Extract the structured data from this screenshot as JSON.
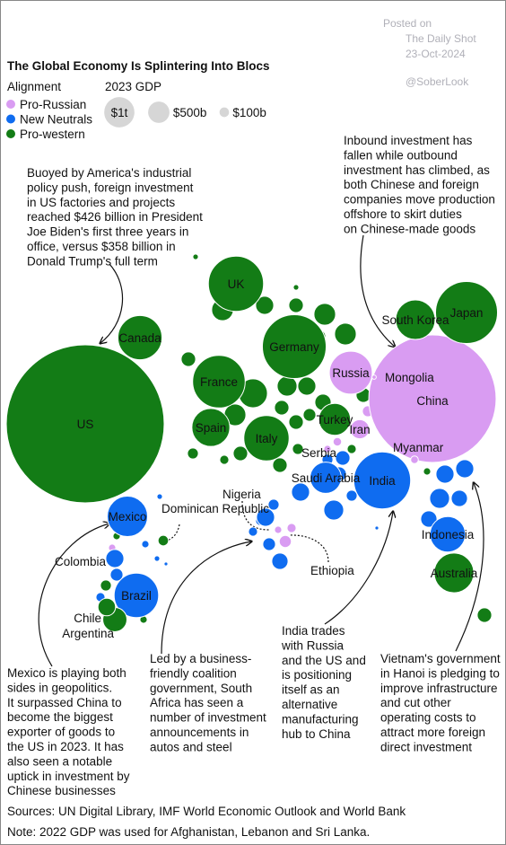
{
  "watermark": {
    "posted": "Posted on",
    "source": "The Daily Shot",
    "date": "23-Oct-2024",
    "handle": "@SoberLook"
  },
  "chart_data": {
    "type": "bubble",
    "title": "The Global Economy Is Splintering Into Blocs",
    "legend_title": "Alignment",
    "size_title": "2023 GDP",
    "groups": [
      {
        "name": "Pro-Russian",
        "color": "#d99cf2"
      },
      {
        "name": "New Neutrals",
        "color": "#0f6cf0"
      },
      {
        "name": "Pro-western",
        "color": "#137c16"
      }
    ],
    "size_legend": [
      {
        "value": 1,
        "label": "$1t"
      },
      {
        "value": 0.5,
        "label": "$500b"
      },
      {
        "value": 0.1,
        "label": "$100b"
      }
    ],
    "countries": [
      "US",
      "China",
      "Germany",
      "Japan",
      "India",
      "UK",
      "France",
      "Italy",
      "Brazil",
      "Canada",
      "Russia",
      "Mexico",
      "Australia",
      "South Korea",
      "Spain",
      "Indonesia",
      "Turkey",
      "Saudi Arabia",
      "Iran",
      "Argentina",
      "Nigeria",
      "Colombia",
      "Chile",
      "Ethiopia",
      "Dominican Republic",
      "Serbia",
      "Myanmar",
      "Mongolia"
    ],
    "gdp": [
      27.36,
      17.79,
      4.46,
      4.21,
      3.55,
      3.34,
      3.03,
      2.25,
      2.17,
      2.14,
      2.02,
      1.79,
      1.72,
      1.71,
      1.58,
      1.37,
      1.11,
      1.07,
      0.4,
      0.64,
      0.36,
      0.36,
      0.34,
      0.16,
      0.12,
      0.08,
      0.065,
      0.02
    ],
    "group": [
      2,
      0,
      2,
      2,
      1,
      2,
      2,
      2,
      1,
      2,
      0,
      1,
      2,
      2,
      2,
      1,
      2,
      1,
      0,
      2,
      1,
      1,
      2,
      0,
      2,
      0,
      0,
      0
    ],
    "annotations": [
      [
        "Buoyed by America's industrial",
        "policy push, foreign investment",
        "in US factories and projects",
        "reached $426 billion in President",
        "Joe Biden's first three years in",
        "office, versus $358 billion in",
        "Donald Trump's full term"
      ],
      [
        "Inbound investment has",
        "fallen while outbound",
        "investment has climbed, as",
        "both Chinese and foreign",
        "companies move production",
        "offshore to skirt duties",
        "on Chinese-made goods"
      ],
      [
        "Mexico is playing both",
        "sides in geopolitics.",
        "It surpassed China to",
        "become the biggest",
        "exporter of goods to",
        "the US in 2023. It has",
        "also seen a notable",
        "uptick in investment by",
        "Chinese businesses"
      ],
      [
        "Led by a business-",
        "friendly coalition",
        "government, South",
        "Africa has seen a",
        "number of investment",
        "announcements in",
        "autos and steel"
      ],
      [
        "India trades",
        "with Russia",
        "and the US and",
        "is positioning",
        "itself as an",
        "alternative",
        "manufacturing",
        "hub to China"
      ],
      [
        "Vietnam's government",
        "in Hanoi is pledging to",
        "improve infrastructure",
        "and cut other",
        "operating costs to",
        "attract more foreign",
        "direct investment"
      ]
    ],
    "sources": "Sources: UN Digital Library, IMF World Economic Outlook and World Bank",
    "note": "Note: 2022 GDP was used for Afghanistan, Lebanon and Sri Lanka."
  }
}
